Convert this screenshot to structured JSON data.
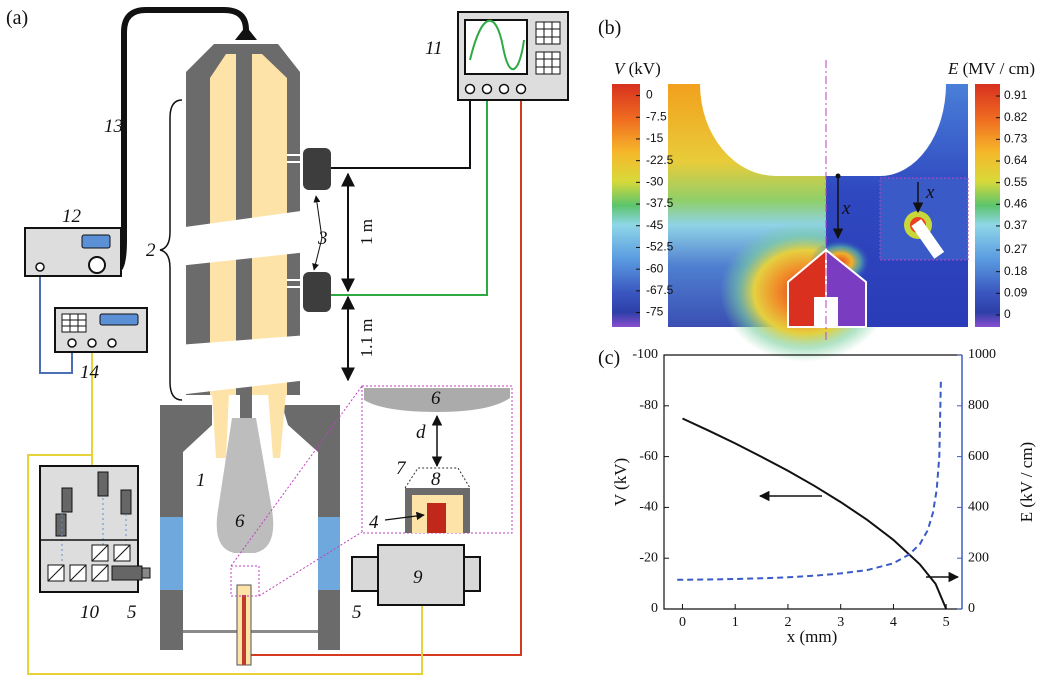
{
  "panel_labels": [
    "(a)",
    "(b)",
    "(c)"
  ],
  "diagram": {
    "labels": [
      "1",
      "2",
      "3",
      "4",
      "5",
      "5",
      "6",
      "6",
      "7",
      "8",
      "9",
      "10",
      "11",
      "12",
      "13",
      "14"
    ],
    "distances": [
      "1 m",
      "1.1 m"
    ],
    "gap_label": "d"
  },
  "field_map": {
    "v_colorbar": {
      "symbol": "V",
      "unit": "(kV)",
      "lim": [
        -80,
        4
      ],
      "ticks": [
        0,
        -7.5,
        -15,
        -22.5,
        -30,
        -37.5,
        -45,
        -52.5,
        -60,
        -67.5,
        -75
      ]
    },
    "e_colorbar": {
      "symbol": "E",
      "unit": "(MV / cm)",
      "lim": [
        -0.05,
        0.96
      ],
      "ticks": [
        0.91,
        0.82,
        0.73,
        0.64,
        0.55,
        0.46,
        0.37,
        0.27,
        0.18,
        0.09,
        0
      ]
    },
    "distance_labels": [
      "x",
      "x"
    ]
  },
  "chart_data": {
    "type": "line",
    "x_label": "x (mm)",
    "y_label": "V (kV)",
    "y2_label": "E (kV / cm)",
    "xlim": [
      -0.35,
      5.3
    ],
    "ylim": [
      0,
      -100
    ],
    "y2lim": [
      0,
      1000
    ],
    "xticks": [
      0,
      1,
      2,
      3,
      4,
      5
    ],
    "yticks": [
      0,
      -20,
      -40,
      -60,
      -80,
      -100
    ],
    "y2ticks": [
      0,
      200,
      400,
      600,
      800,
      1000
    ],
    "series": [
      {
        "color": "#111111",
        "dashed": false,
        "x": [
          0,
          0.5,
          1,
          1.5,
          2,
          2.5,
          3,
          3.5,
          4,
          4.5,
          4.8,
          5
        ],
        "values": [
          -75,
          -70.2,
          -65.2,
          -59.9,
          -54.4,
          -48.5,
          -42.1,
          -35.1,
          -27.2,
          -17.6,
          -9.9,
          0
        ]
      },
      {
        "color": "#3a5bc7",
        "dashed": true,
        "axis": "y2",
        "x": [
          -0.1,
          0.5,
          1,
          1.5,
          2,
          2.5,
          3,
          3.5,
          4,
          4.3,
          4.5,
          4.65,
          4.75,
          4.82,
          4.87,
          4.9
        ],
        "values": [
          115,
          116,
          118,
          121,
          125,
          131,
          140,
          153,
          180,
          215,
          255,
          310,
          380,
          470,
          600,
          900
        ]
      }
    ]
  }
}
